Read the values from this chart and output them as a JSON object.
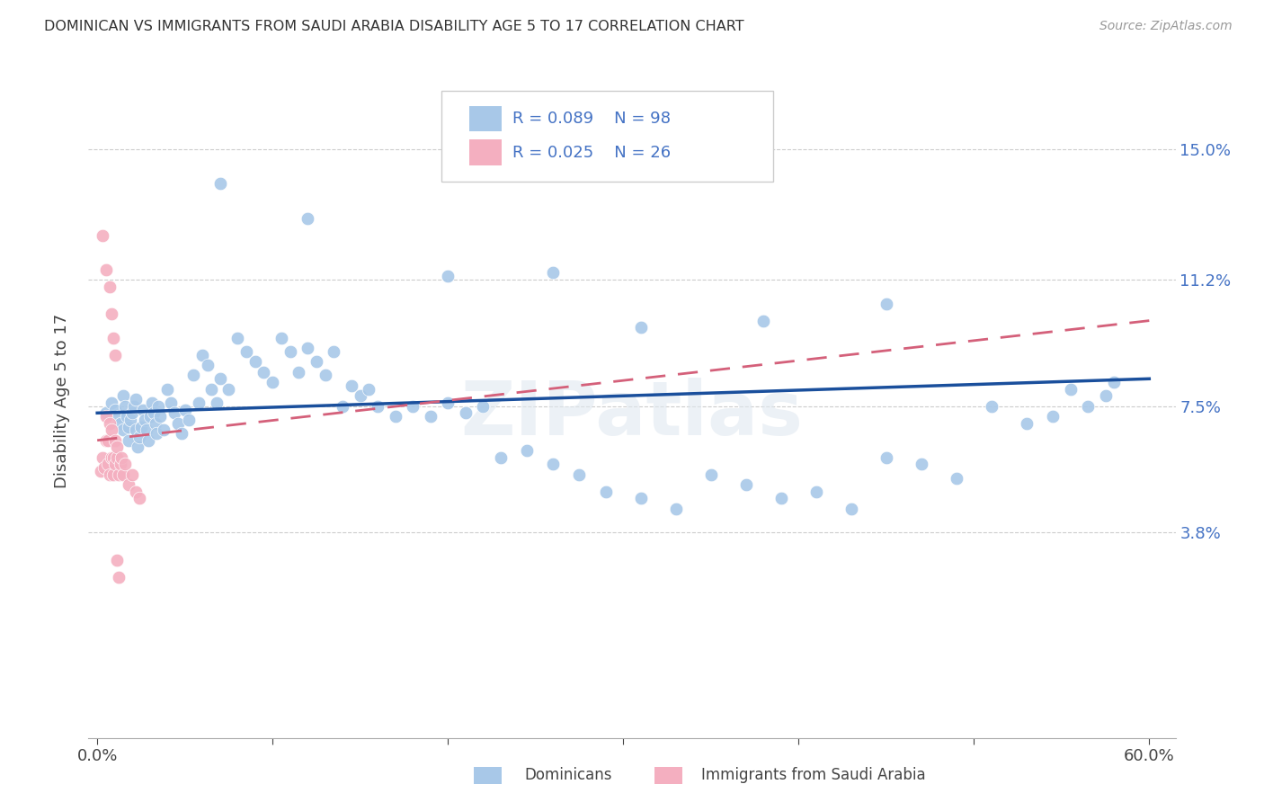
{
  "title": "DOMINICAN VS IMMIGRANTS FROM SAUDI ARABIA DISABILITY AGE 5 TO 17 CORRELATION CHART",
  "source": "Source: ZipAtlas.com",
  "ylabel": "Disability Age 5 to 17",
  "xlim": [
    -0.005,
    0.615
  ],
  "ylim": [
    -0.022,
    0.175
  ],
  "ytick_positions": [
    0.038,
    0.075,
    0.112,
    0.15
  ],
  "ytick_labels": [
    "3.8%",
    "7.5%",
    "11.2%",
    "15.0%"
  ],
  "dominican_color": "#a8c8e8",
  "saudi_color": "#f4afc0",
  "trend_dominican_color": "#1a4f9c",
  "trend_saudi_color": "#d4607a",
  "dominican_points_x": [
    0.005,
    0.008,
    0.01,
    0.012,
    0.013,
    0.015,
    0.015,
    0.016,
    0.017,
    0.018,
    0.018,
    0.019,
    0.02,
    0.021,
    0.022,
    0.022,
    0.023,
    0.024,
    0.025,
    0.026,
    0.027,
    0.028,
    0.029,
    0.03,
    0.031,
    0.032,
    0.033,
    0.034,
    0.035,
    0.036,
    0.038,
    0.04,
    0.042,
    0.044,
    0.046,
    0.048,
    0.05,
    0.052,
    0.055,
    0.058,
    0.06,
    0.063,
    0.065,
    0.068,
    0.07,
    0.075,
    0.08,
    0.085,
    0.09,
    0.095,
    0.1,
    0.105,
    0.11,
    0.115,
    0.12,
    0.125,
    0.13,
    0.135,
    0.14,
    0.145,
    0.15,
    0.16,
    0.17,
    0.18,
    0.19,
    0.2,
    0.21,
    0.22,
    0.23,
    0.245,
    0.26,
    0.275,
    0.29,
    0.31,
    0.33,
    0.35,
    0.37,
    0.39,
    0.41,
    0.43,
    0.45,
    0.47,
    0.49,
    0.51,
    0.53,
    0.545,
    0.555,
    0.565,
    0.575,
    0.58,
    0.45,
    0.38,
    0.31,
    0.26,
    0.2,
    0.155,
    0.12,
    0.07
  ],
  "dominican_points_y": [
    0.073,
    0.076,
    0.074,
    0.072,
    0.07,
    0.078,
    0.068,
    0.075,
    0.072,
    0.065,
    0.069,
    0.071,
    0.073,
    0.075,
    0.077,
    0.068,
    0.063,
    0.066,
    0.069,
    0.074,
    0.071,
    0.068,
    0.065,
    0.072,
    0.076,
    0.073,
    0.07,
    0.067,
    0.075,
    0.072,
    0.068,
    0.08,
    0.076,
    0.073,
    0.07,
    0.067,
    0.074,
    0.071,
    0.084,
    0.076,
    0.09,
    0.087,
    0.08,
    0.076,
    0.083,
    0.08,
    0.095,
    0.091,
    0.088,
    0.085,
    0.082,
    0.095,
    0.091,
    0.085,
    0.092,
    0.088,
    0.084,
    0.091,
    0.075,
    0.081,
    0.078,
    0.075,
    0.072,
    0.075,
    0.072,
    0.076,
    0.073,
    0.075,
    0.06,
    0.062,
    0.058,
    0.055,
    0.05,
    0.048,
    0.045,
    0.055,
    0.052,
    0.048,
    0.05,
    0.045,
    0.06,
    0.058,
    0.054,
    0.075,
    0.07,
    0.072,
    0.08,
    0.075,
    0.078,
    0.082,
    0.105,
    0.1,
    0.098,
    0.114,
    0.113,
    0.08,
    0.13,
    0.14
  ],
  "saudi_points_x": [
    0.002,
    0.003,
    0.004,
    0.005,
    0.005,
    0.006,
    0.006,
    0.007,
    0.007,
    0.008,
    0.008,
    0.009,
    0.009,
    0.01,
    0.01,
    0.011,
    0.011,
    0.012,
    0.013,
    0.014,
    0.015,
    0.016,
    0.018,
    0.02,
    0.022,
    0.024
  ],
  "saudi_points_y": [
    0.056,
    0.06,
    0.057,
    0.065,
    0.072,
    0.058,
    0.065,
    0.07,
    0.055,
    0.06,
    0.068,
    0.06,
    0.055,
    0.058,
    0.065,
    0.06,
    0.063,
    0.055,
    0.058,
    0.06,
    0.055,
    0.058,
    0.052,
    0.055,
    0.05,
    0.048
  ],
  "saudi_extra_x": [
    0.003,
    0.005,
    0.007,
    0.008,
    0.009,
    0.01,
    0.011,
    0.012
  ],
  "saudi_extra_y": [
    0.125,
    0.115,
    0.11,
    0.102,
    0.095,
    0.09,
    0.03,
    0.025
  ]
}
